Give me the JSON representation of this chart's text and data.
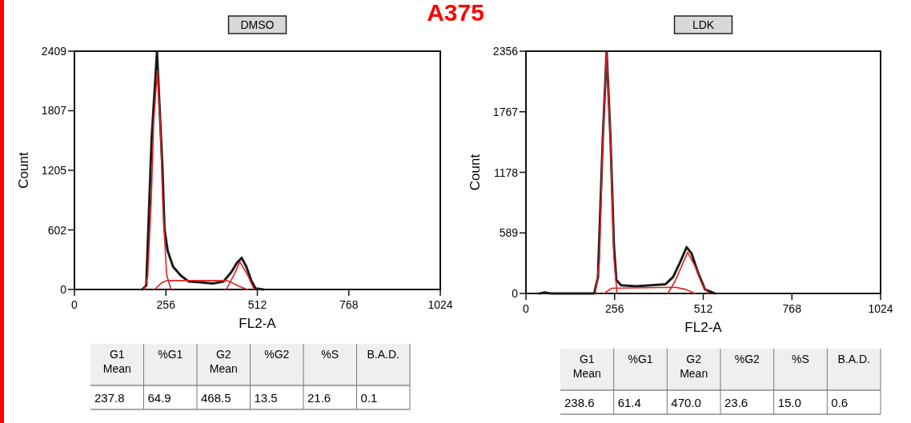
{
  "chart_data": [
    {
      "type": "other",
      "title": "A375"
    },
    {
      "type": "line",
      "title": "DMSO",
      "xlabel": "FL2-A",
      "ylabel": "Count",
      "xlim": [
        0,
        1024
      ],
      "xticks": [
        0,
        256,
        512,
        768,
        {
          "value": 1024,
          "label": "1024"
        }
      ],
      "ylim": [
        0,
        2409
      ],
      "yticks": [
        0,
        602,
        1205,
        1807,
        2409
      ],
      "marker": "none",
      "line_style": "solid",
      "annotations": [
        "G1 Mean",
        "%G1",
        "G2 Mean",
        "%G2",
        "%S",
        "B.A.D.",
        "237.8",
        "64.9",
        "468.5",
        "13.5",
        "21.6",
        "0.1"
      ],
      "series": [
        {
          "color": "#1a1a1a",
          "x": [
            190,
            201,
            216,
            231,
            246,
            252,
            261,
            276,
            298,
            320,
            358,
            388,
            417,
            440,
            455,
            468,
            481,
            495,
            507,
            529
          ],
          "values": [
            0,
            40,
            1520,
            2400,
            1250,
            610,
            390,
            230,
            140,
            80,
            70,
            60,
            80,
            180,
            270,
            320,
            230,
            90,
            10,
            0
          ]
        },
        {
          "color": "#e02020",
          "x": [
            195,
            205,
            215,
            222,
            232,
            240,
            248,
            258,
            270
          ],
          "values": [
            0,
            130,
            900,
            1700,
            2210,
            1700,
            800,
            150,
            0
          ]
        },
        {
          "color": "#e02020",
          "x": [
            224,
            245,
            261,
            425,
            440,
            462,
            484
          ],
          "values": [
            0,
            70,
            90,
            90,
            70,
            30,
            0
          ]
        },
        {
          "color": "#e02020",
          "x": [
            425,
            447,
            463,
            484,
            503
          ],
          "values": [
            0,
            150,
            280,
            150,
            0
          ]
        }
      ]
    },
    {
      "type": "line",
      "title": "LDK",
      "xlabel": "FL2-A",
      "ylabel": "Count",
      "xlim": [
        0,
        1024
      ],
      "xticks": [
        0,
        256,
        512,
        768,
        {
          "value": 1024,
          "label": "1024"
        }
      ],
      "ylim": [
        0,
        2356
      ],
      "yticks": [
        0,
        589,
        1178,
        1767,
        2356
      ],
      "marker": "none",
      "line_style": "solid",
      "annotations": [
        "G1 Mean",
        "%G1",
        "G2 Mean",
        "%G2",
        "%S",
        "B.A.D.",
        "238.6",
        "61.4",
        "470.0",
        "23.6",
        "15.0",
        "0.6"
      ],
      "series": [
        {
          "color": "#1a1a1a",
          "x": [
            40,
            55,
            70,
            197,
            208,
            222,
            233,
            244,
            254,
            261,
            275,
            318,
            361,
            403,
            425,
            446,
            464,
            478,
            496,
            517,
            545
          ],
          "values": [
            0,
            10,
            0,
            0,
            160,
            1520,
            2350,
            1520,
            470,
            130,
            80,
            70,
            80,
            90,
            160,
            310,
            450,
            390,
            210,
            40,
            0
          ]
        },
        {
          "color": "#e02020",
          "x": [
            200,
            212,
            222,
            233,
            244,
            254,
            263
          ],
          "values": [
            0,
            300,
            1500,
            2340,
            1500,
            350,
            0
          ]
        },
        {
          "color": "#e02020",
          "x": [
            226,
            247,
            432,
            460,
            488
          ],
          "values": [
            0,
            50,
            60,
            40,
            0
          ]
        },
        {
          "color": "#e02020",
          "x": [
            410,
            432,
            467,
            489,
            510,
            528
          ],
          "values": [
            0,
            130,
            400,
            260,
            80,
            0
          ]
        }
      ]
    }
  ]
}
